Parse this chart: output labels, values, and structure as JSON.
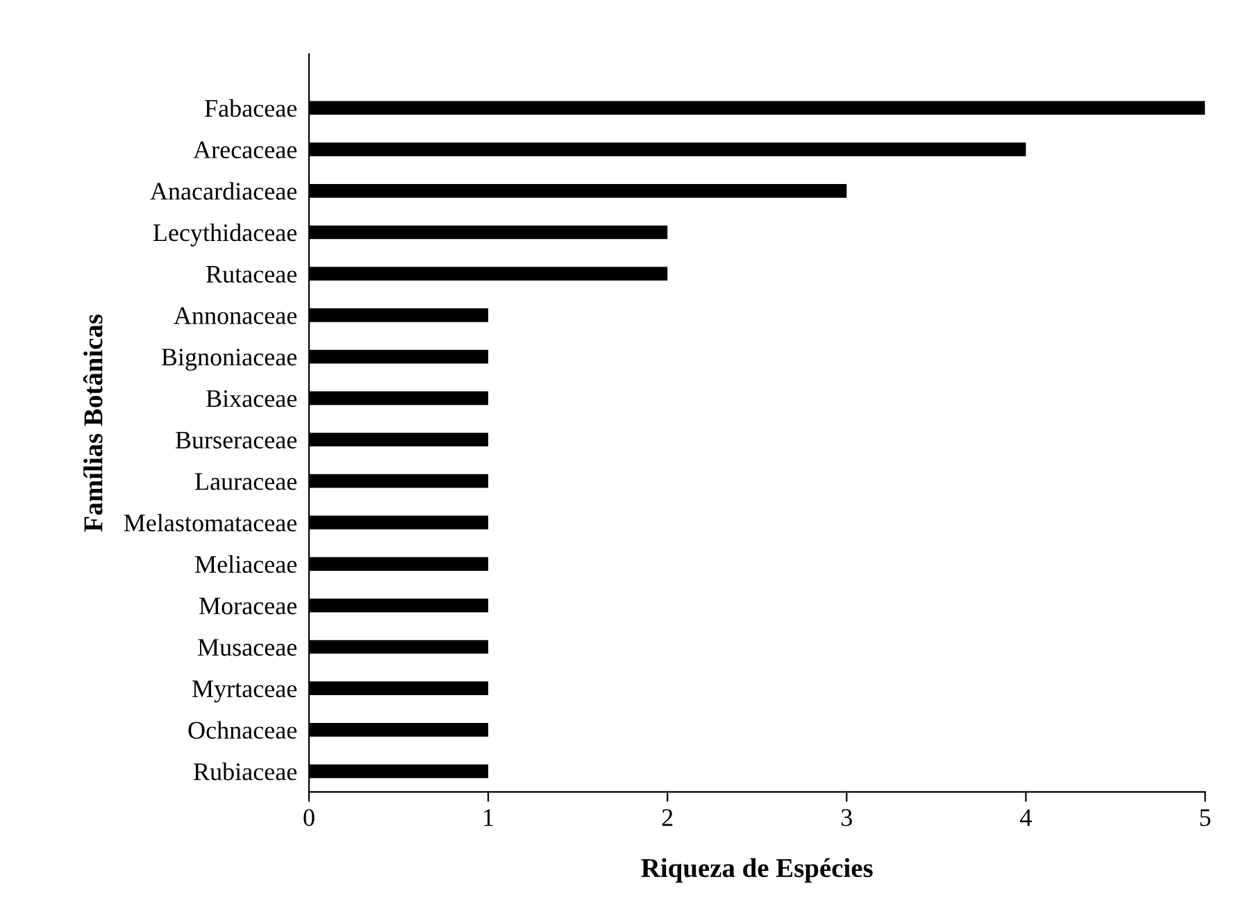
{
  "chart_data": {
    "type": "bar",
    "orientation": "horizontal",
    "xlabel": "Riqueza de Espécies",
    "ylabel": "Famílias Botânicas",
    "categories": [
      "Fabaceae",
      "Arecaceae",
      "Anacardiaceae",
      "Lecythidaceae",
      "Rutaceae",
      "Annonaceae",
      "Bignoniaceae",
      "Bixaceae",
      "Burseraceae",
      "Lauraceae",
      "Melastomataceae",
      "Meliaceae",
      "Moraceae",
      "Musaceae",
      "Myrtaceae",
      "Ochnaceae",
      "Rubiaceae"
    ],
    "values": [
      5,
      4,
      3,
      2,
      2,
      1,
      1,
      1,
      1,
      1,
      1,
      1,
      1,
      1,
      1,
      1,
      1
    ],
    "color": "#000000",
    "xlim": [
      0,
      5
    ],
    "xticks": [
      0,
      1,
      2,
      3,
      4,
      5
    ],
    "grid": false
  }
}
